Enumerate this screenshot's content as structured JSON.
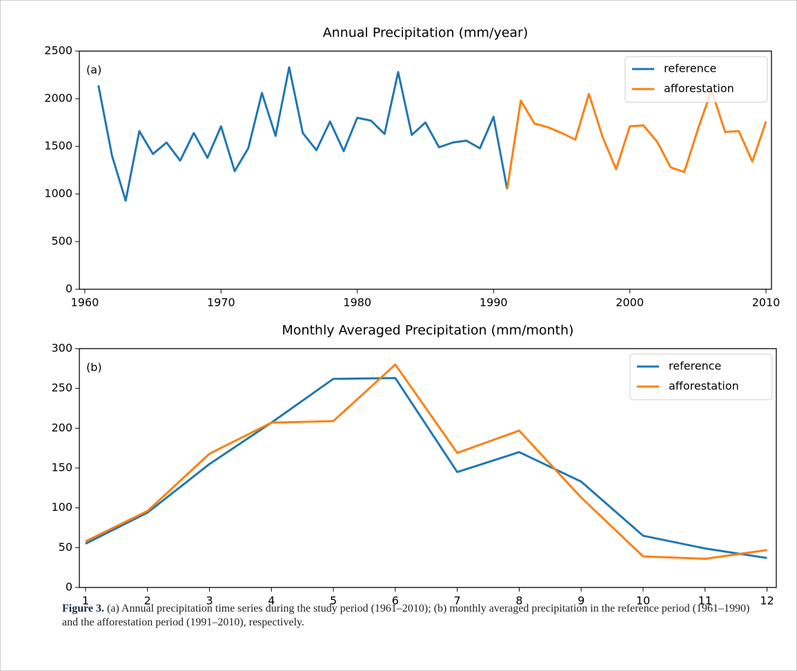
{
  "chart_data": [
    {
      "type": "line",
      "title": "Annual Precipitation (mm/year)",
      "annotation": "(a)",
      "x": [
        1961,
        1962,
        1963,
        1964,
        1965,
        1966,
        1967,
        1968,
        1969,
        1970,
        1971,
        1972,
        1973,
        1974,
        1975,
        1976,
        1977,
        1978,
        1979,
        1980,
        1981,
        1982,
        1983,
        1984,
        1985,
        1986,
        1987,
        1988,
        1989,
        1990,
        1991,
        1992,
        1993,
        1994,
        1995,
        1996,
        1997,
        1998,
        1999,
        2000,
        2001,
        2002,
        2003,
        2004,
        2005,
        2006,
        2007,
        2008,
        2009,
        2010
      ],
      "series": [
        {
          "name": "reference",
          "color": "#1f77b4",
          "values": [
            2140,
            1400,
            930,
            1660,
            1420,
            1540,
            1350,
            1640,
            1380,
            1710,
            1240,
            1480,
            2060,
            1610,
            2330,
            1640,
            1460,
            1760,
            1450,
            1800,
            1770,
            1630,
            2280,
            1620,
            1750,
            1490,
            1540,
            1560,
            1480,
            1810,
            1050,
            null,
            null,
            null,
            null,
            null,
            null,
            null,
            null,
            null,
            null,
            null,
            null,
            null,
            null,
            null,
            null,
            null,
            null,
            null
          ]
        },
        {
          "name": "afforestation",
          "color": "#ff7f0e",
          "values": [
            null,
            null,
            null,
            null,
            null,
            null,
            null,
            null,
            null,
            null,
            null,
            null,
            null,
            null,
            null,
            null,
            null,
            null,
            null,
            null,
            null,
            null,
            null,
            null,
            null,
            null,
            null,
            null,
            null,
            null,
            1050,
            1980,
            1740,
            1700,
            1640,
            1570,
            2050,
            1600,
            1260,
            1710,
            1720,
            1550,
            1280,
            1230,
            1680,
            2090,
            1650,
            1660,
            1340,
            1760
          ]
        }
      ],
      "xlim": [
        1959.6,
        2010.4
      ],
      "ylim": [
        0,
        2500
      ],
      "xticks": [
        1960,
        1970,
        1980,
        1990,
        2000,
        2010
      ],
      "yticks": [
        0,
        500,
        1000,
        1500,
        2000,
        2500
      ],
      "legend": "upper right"
    },
    {
      "type": "line",
      "title": "Monthly Averaged Precipitation (mm/month)",
      "annotation": "(b)",
      "x": [
        1,
        2,
        3,
        4,
        5,
        6,
        7,
        8,
        9,
        10,
        11,
        12
      ],
      "series": [
        {
          "name": "reference",
          "color": "#1f77b4",
          "values": [
            55,
            94,
            155,
            207,
            262,
            263,
            145,
            170,
            133,
            65,
            49,
            37
          ]
        },
        {
          "name": "afforestation",
          "color": "#ff7f0e",
          "values": [
            58,
            96,
            168,
            207,
            209,
            280,
            169,
            197,
            113,
            39,
            36,
            47
          ]
        }
      ],
      "xlim": [
        0.9,
        12.15
      ],
      "ylim": [
        0,
        300
      ],
      "xticks": [
        1,
        2,
        3,
        4,
        5,
        6,
        7,
        8,
        9,
        10,
        11,
        12
      ],
      "yticks": [
        0,
        50,
        100,
        150,
        200,
        250,
        300
      ],
      "legend": "upper right"
    }
  ],
  "caption": {
    "label": "Figure 3.",
    "text": "(a) Annual precipitation time series during the study period (1961–2010); (b) monthly averaged precipitation in the reference period (1961–1990) and the afforestation period (1991–2010), respectively."
  }
}
